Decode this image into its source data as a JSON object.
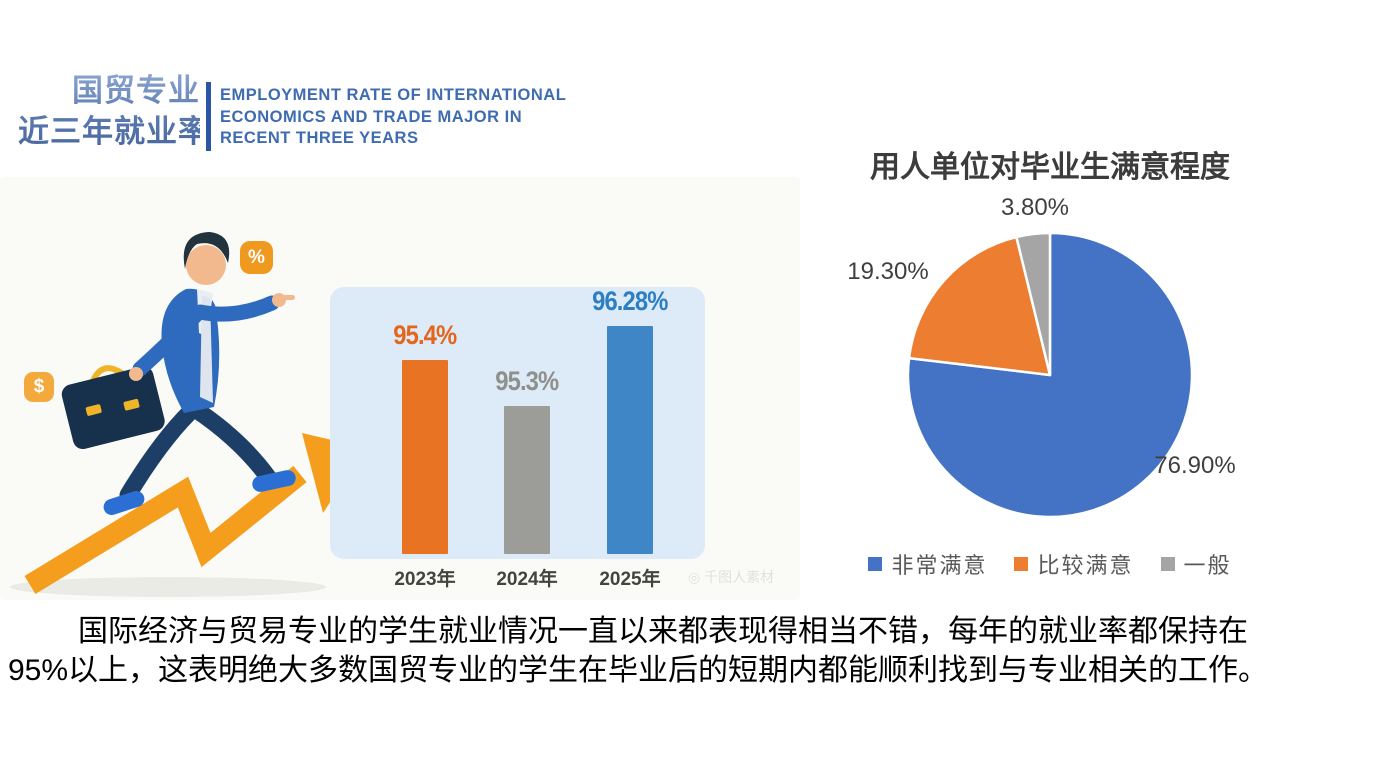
{
  "header": {
    "title_cn_line1": "国贸专业",
    "title_cn_line2": "近三年就业率",
    "title_en_line1": "EMPLOYMENT RATE OF INTERNATIONAL",
    "title_en_line2": "ECONOMICS AND TRADE MAJOR IN",
    "title_en_line3": "RECENT THREE YEARS"
  },
  "illustration": {
    "dollar_symbol": "$",
    "percent_symbol": "%",
    "watermark": "◎ 千图人素材"
  },
  "chart_data": [
    {
      "type": "bar",
      "title": "",
      "categories": [
        "2023年",
        "2024年",
        "2025年"
      ],
      "values": [
        95.4,
        95.3,
        96.28
      ],
      "value_labels": [
        "95.4%",
        "95.3%",
        "96.28%"
      ],
      "bar_colors": [
        "#E87323",
        "#9C9C98",
        "#3F86C6"
      ],
      "label_colors": [
        "#E4651C",
        "#8F8F8C",
        "#2E7FC2"
      ],
      "xlabel": "",
      "ylabel": "",
      "ylim": [
        0,
        100
      ],
      "grid": false,
      "panel_color": "#DCEBF7"
    },
    {
      "type": "pie",
      "title": "用人单位对毕业生满意程度",
      "labels": [
        "非常满意",
        "比较满意",
        "一般"
      ],
      "values": [
        76.9,
        19.3,
        3.8
      ],
      "value_labels": [
        "76.90%",
        "19.30%",
        "3.80%"
      ],
      "colors": [
        "#4472C4",
        "#ED7D31",
        "#A5A5A5"
      ],
      "start_angle_deg": 0,
      "direction": "clockwise",
      "legend_position": "bottom"
    }
  ],
  "summary": {
    "line1": "国际经济与贸易专业的学生就业情况一直以来都表现得相当不错，每年的就业率都保持在",
    "line2": "95%以上，这表明绝大多数国贸专业的学生在毕业后的短期内都能顺利找到与专业相关的工作。"
  }
}
